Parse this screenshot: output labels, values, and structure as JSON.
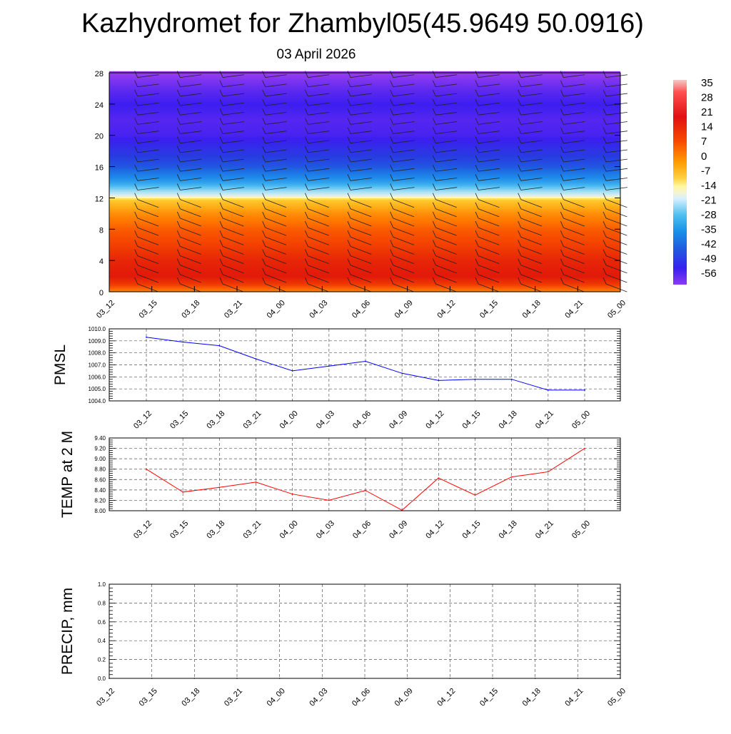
{
  "title": "Kazhydromet for Zhambyl05(45.9649 50.0916)",
  "subtitle": "03 April 2026",
  "chart_data": [
    {
      "type": "heatmap",
      "name": "temperature-wind cross-section",
      "x_labels": [
        "03_12",
        "03_15",
        "03_18",
        "03_21",
        "04_00",
        "04_03",
        "04_06",
        "04_09",
        "04_12",
        "04_15",
        "04_18",
        "04_21",
        "05_00"
      ],
      "y_ticks": [
        "0",
        "4",
        "8",
        "12",
        "16",
        "20",
        "24",
        "28"
      ],
      "ylim": [
        0,
        28
      ],
      "colorbar_labels": [
        "35",
        "28",
        "21",
        "14",
        "7",
        "0",
        "-7",
        "-14",
        "-21",
        "-28",
        "-35",
        "-42",
        "-49",
        "-56"
      ],
      "colorbar_range": [
        -60,
        38
      ],
      "profile_levels": [
        0,
        1,
        2,
        4,
        6,
        8,
        10,
        11.8,
        12.2,
        14,
        16,
        18,
        20,
        22,
        24,
        26,
        28
      ],
      "profile_temps": [
        12,
        23,
        28,
        26,
        22,
        18,
        11,
        2,
        -12,
        -30,
        -44,
        -50,
        -56,
        -57,
        -55,
        -58,
        -62
      ],
      "barbs": "wind barbs overlay"
    },
    {
      "type": "line",
      "name": "PMSL",
      "ylabel": "PMSL",
      "x": [
        "03_12",
        "03_15",
        "03_18",
        "03_21",
        "04_00",
        "04_03",
        "04_06",
        "04_09",
        "04_12",
        "04_15",
        "04_18",
        "04_21",
        "05_00"
      ],
      "values": [
        1009.3,
        1008.9,
        1008.6,
        1007.5,
        1006.5,
        1006.9,
        1007.3,
        1006.3,
        1005.7,
        1005.8,
        1005.8,
        1004.9,
        1004.9
      ],
      "ylim": [
        1004.0,
        1010.0
      ],
      "y_ticks": [
        "1004.0",
        "1005.0",
        "1006.0",
        "1007.0",
        "1008.0",
        "1009.0",
        "1010.0"
      ],
      "color": "#0000ff"
    },
    {
      "type": "line",
      "name": "TEMP at 2 M",
      "ylabel": "TEMP at 2 M",
      "x": [
        "03_12",
        "03_15",
        "03_18",
        "03_21",
        "04_00",
        "04_03",
        "04_06",
        "04_09",
        "04_12",
        "04_15",
        "04_18",
        "04_21",
        "05_00"
      ],
      "values": [
        8.8,
        8.36,
        8.45,
        8.55,
        8.32,
        8.2,
        8.39,
        8.01,
        8.63,
        8.3,
        8.65,
        8.75,
        9.2
      ],
      "ylim": [
        8.0,
        9.4
      ],
      "y_ticks": [
        "8.00",
        "8.20",
        "8.40",
        "8.60",
        "8.80",
        "9.00",
        "9.20",
        "9.40"
      ],
      "color": "#ff0000"
    },
    {
      "type": "line",
      "name": "PRECIP, mm",
      "ylabel": "PRECIP, mm",
      "x": [
        "03_12",
        "03_15",
        "03_18",
        "03_21",
        "04_00",
        "04_03",
        "04_06",
        "04_09",
        "04_12",
        "04_15",
        "04_18",
        "04_21",
        "05_00"
      ],
      "values": [
        0,
        0,
        0,
        0,
        0,
        0,
        0,
        0,
        0,
        0,
        0,
        0,
        0
      ],
      "ylim": [
        0.0,
        1.0
      ],
      "y_ticks": [
        "0.0",
        "0.2",
        "0.4",
        "0.6",
        "0.8",
        "1.0"
      ],
      "color": "#008000"
    }
  ]
}
